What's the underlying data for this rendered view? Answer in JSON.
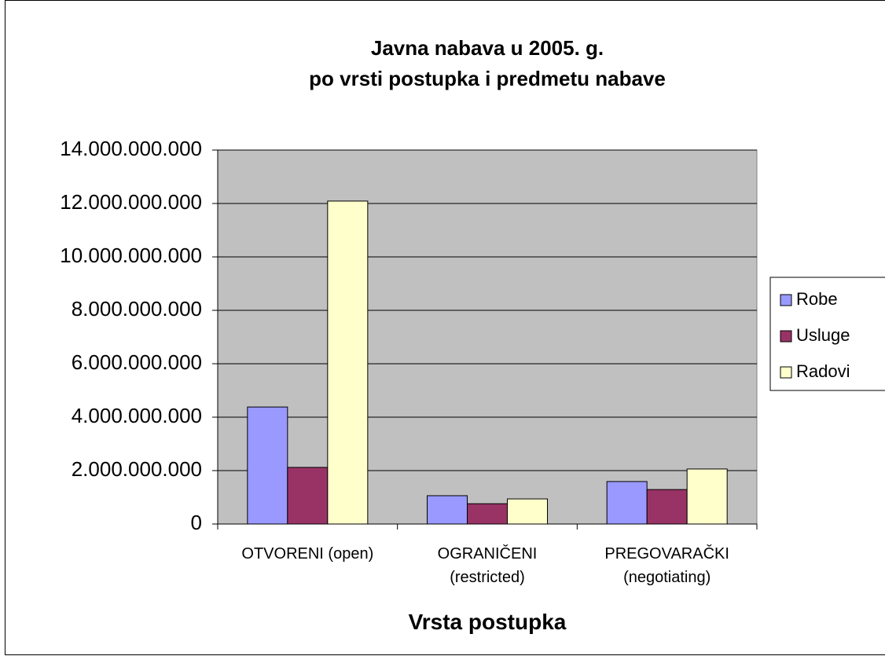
{
  "chart_data": {
    "type": "bar",
    "title": "Javna nabava u 2005. g.\npo vrsti postupka i predmetu nabave",
    "x_label": "Vrsta postupka",
    "categories": [
      "OTVORENI (open)",
      "OGRANIČENI\n(restricted)",
      "PREGOVARAČKI\n(negotiating)"
    ],
    "series": [
      {
        "name": "Robe",
        "color": "#9999ff",
        "values": [
          4380000000,
          1060000000,
          1590000000
        ]
      },
      {
        "name": "Usluge",
        "color": "#993366",
        "values": [
          2120000000,
          760000000,
          1290000000
        ]
      },
      {
        "name": "Radovi",
        "color": "#ffffcc",
        "values": [
          12090000000,
          940000000,
          2060000000
        ]
      }
    ],
    "ylim": [
      0,
      14000000000
    ],
    "yticks": [
      0,
      {
        "value": 2000000000,
        "label": "2.000.000.000"
      },
      {
        "value": 4000000000,
        "label": "4.000.000.000"
      },
      {
        "value": 6000000000,
        "label": "6.000.000.000"
      },
      {
        "value": 8000000000,
        "label": "8.000.000.000"
      },
      {
        "value": 10000000000,
        "label": "10.000.000.000"
      },
      {
        "value": 12000000000,
        "label": "12.000.000.000"
      },
      {
        "value": 14000000000,
        "label": "14.000.000.000"
      }
    ],
    "grid": true,
    "plot_background": "#c0c0c0",
    "legend": "right"
  }
}
